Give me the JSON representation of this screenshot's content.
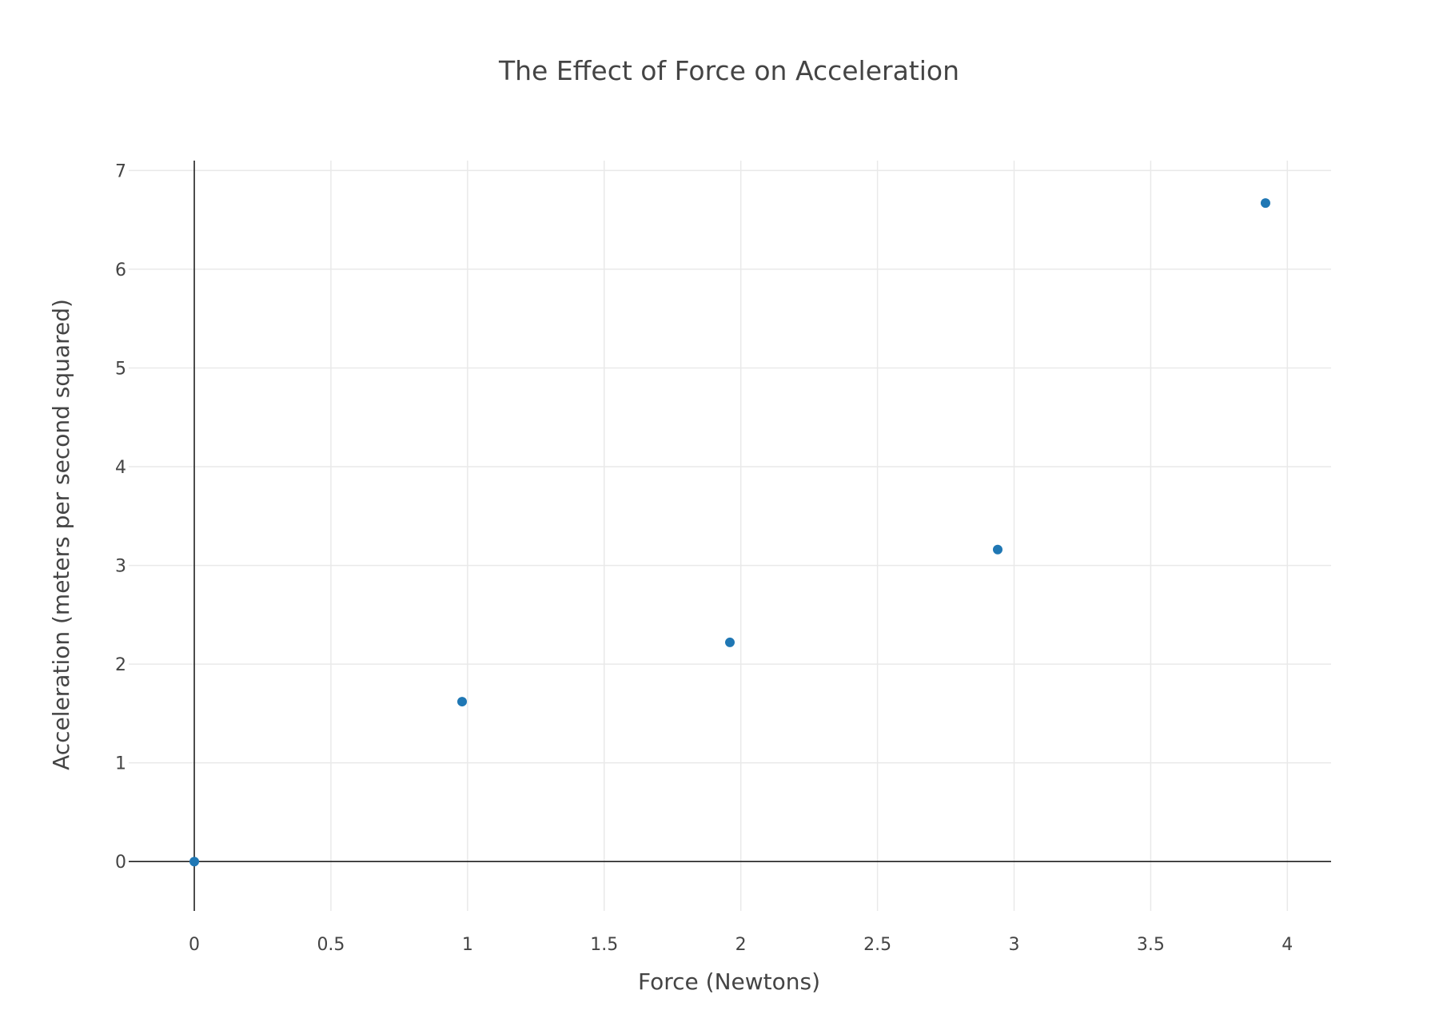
{
  "chart_data": {
    "type": "scatter",
    "title": "The Effect of Force on Acceleration",
    "xlabel": "Force (Newtons)",
    "ylabel": "Acceleration (meters per second squared)",
    "xlim": [
      -0.24,
      4.16
    ],
    "ylim": [
      -0.5,
      7.1
    ],
    "x_ticks": [
      0,
      0.5,
      1,
      1.5,
      2,
      2.5,
      3,
      3.5,
      4
    ],
    "x_tick_labels": [
      "0",
      "0.5",
      "1",
      "1.5",
      "2",
      "2.5",
      "3",
      "3.5",
      "4"
    ],
    "y_ticks": [
      0,
      1,
      2,
      3,
      4,
      5,
      6,
      7
    ],
    "y_tick_labels": [
      "0",
      "1",
      "2",
      "3",
      "4",
      "5",
      "6",
      "7"
    ],
    "grid": true,
    "marker_color": "#1f77b4",
    "series": [
      {
        "x": [
          0,
          0.98,
          1.96,
          2.94,
          3.92
        ],
        "y": [
          0,
          1.62,
          2.22,
          3.16,
          6.67
        ]
      }
    ]
  }
}
